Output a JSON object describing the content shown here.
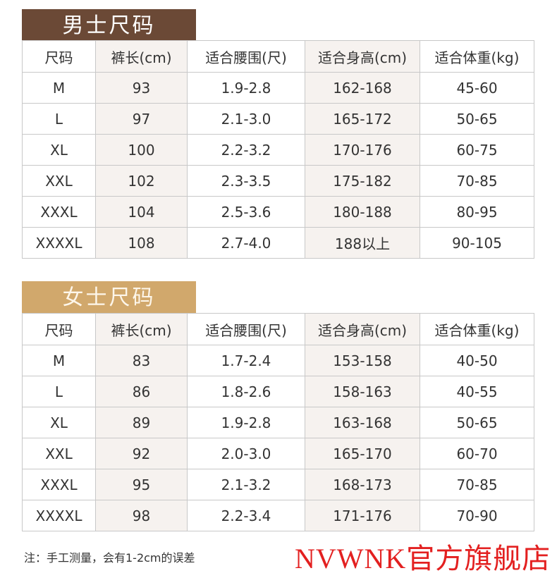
{
  "men": {
    "title": "男士尺码",
    "headers": [
      "尺码",
      "裤长(cm)",
      "适合腰围(尺)",
      "适合身高(cm)",
      "适合体重(kg)"
    ],
    "rows": [
      [
        "M",
        "93",
        "1.9-2.8",
        "162-168",
        "45-60"
      ],
      [
        "L",
        "97",
        "2.1-3.0",
        "165-172",
        "50-65"
      ],
      [
        "XL",
        "100",
        "2.2-3.2",
        "170-176",
        "60-75"
      ],
      [
        "XXL",
        "102",
        "2.3-3.5",
        "175-182",
        "70-85"
      ],
      [
        "XXXL",
        "104",
        "2.5-3.6",
        "180-188",
        "80-95"
      ],
      [
        "XXXXL",
        "108",
        "2.7-4.0",
        "188以上",
        "90-105"
      ]
    ]
  },
  "women": {
    "title": "女士尺码",
    "headers": [
      "尺码",
      "裤长(cm)",
      "适合腰围(尺)",
      "适合身高(cm)",
      "适合体重(kg)"
    ],
    "rows": [
      [
        "M",
        "83",
        "1.7-2.4",
        "153-158",
        "40-50"
      ],
      [
        "L",
        "86",
        "1.8-2.6",
        "158-163",
        "40-55"
      ],
      [
        "XL",
        "89",
        "1.9-2.8",
        "163-168",
        "50-65"
      ],
      [
        "XXL",
        "92",
        "2.0-3.0",
        "165-170",
        "60-70"
      ],
      [
        "XXXL",
        "95",
        "2.1-3.2",
        "168-173",
        "70-85"
      ],
      [
        "XXXXL",
        "98",
        "2.2-3.4",
        "171-176",
        "70-90"
      ]
    ]
  },
  "note": "注：手工测量，会有1-2cm的误差",
  "brand": "NVWNK官方旗舰店",
  "colors": {
    "men_banner": "#6b4936",
    "women_banner": "#d1a86c",
    "brand_text": "#e32020"
  }
}
